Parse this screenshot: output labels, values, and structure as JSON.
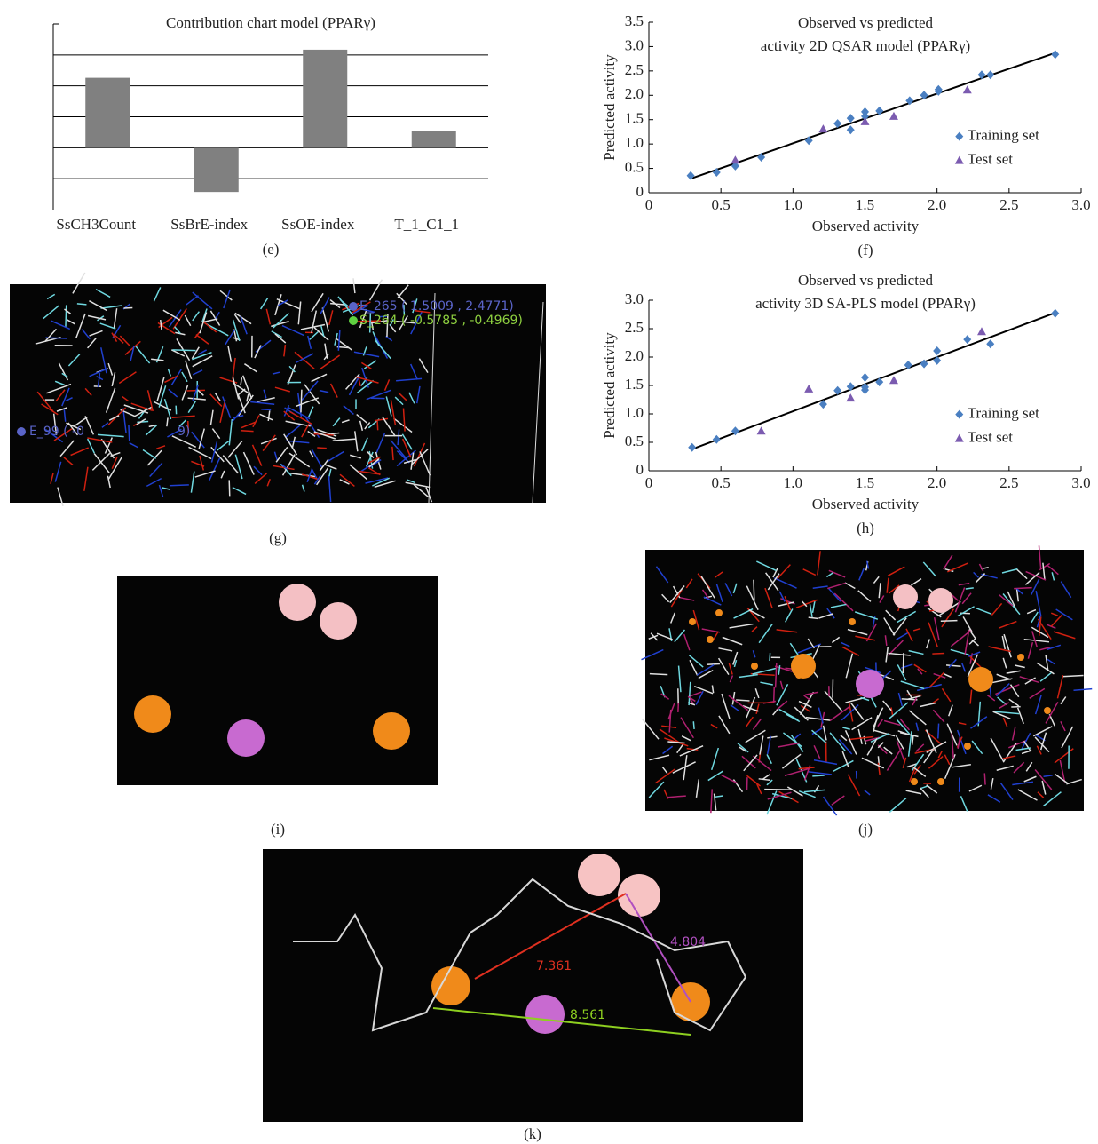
{
  "chart_data": [
    {
      "type": "bar",
      "title": [
        "Contribution chart model (PPARγ)"
      ],
      "categories": [
        "SsCH3Count",
        "SsBrE-index",
        "SsOE-index",
        "T_1_C1_1"
      ],
      "values": [
        2.26,
        -1.43,
        3.17,
        0.54
      ],
      "color": "#808080",
      "ylim": [
        -2,
        4
      ],
      "gridlines": [
        -1,
        0,
        1,
        2,
        3
      ],
      "caption": "(e)"
    },
    {
      "type": "scatter",
      "title": [
        "Observed vs predicted",
        "activity 2D QSAR model (PPARγ)"
      ],
      "x_label": "Observed activity",
      "y_label": "Predicted activity",
      "caption": "(f)",
      "xlim": [
        0,
        3
      ],
      "ylim": [
        0,
        3.5
      ],
      "xticks": [
        0,
        0.5,
        {
          "value": 1,
          "label": "1.0"
        },
        1.5,
        {
          "value": 2,
          "label": "2.0"
        },
        2.5,
        {
          "value": 3,
          "label": "3.0"
        }
      ],
      "yticks": [
        0,
        0.5,
        {
          "value": 1,
          "label": "1.0"
        },
        1.5,
        {
          "value": 2,
          "label": "2.0"
        },
        2.5,
        {
          "value": 3,
          "label": "3.0"
        },
        3.5
      ],
      "legend": "center-right",
      "series": [
        {
          "name": "Training set",
          "color": "#4a7fc1",
          "marker": "diamond",
          "x": [
            0.29,
            0.47,
            0.6,
            0.78,
            1.11,
            1.31,
            1.4,
            1.4,
            1.5,
            1.5,
            1.6,
            1.81,
            1.91,
            2.01,
            2.01,
            2.31,
            2.37,
            2.82
          ],
          "values": [
            0.35,
            0.42,
            0.55,
            0.73,
            1.07,
            1.42,
            1.29,
            1.53,
            1.66,
            1.57,
            1.68,
            1.89,
            2.0,
            2.08,
            2.12,
            2.42,
            2.42,
            2.84
          ]
        },
        {
          "name": "Test set",
          "color": "#7b5bb0",
          "marker": "triangle",
          "x": [
            0.6,
            1.21,
            1.5,
            1.7,
            2.21
          ],
          "values": [
            0.67,
            1.31,
            1.46,
            1.57,
            2.11
          ]
        }
      ],
      "trendline": {
        "x": [
          0.3,
          2.8
        ],
        "y": [
          0.3,
          2.85
        ],
        "color": "#000000"
      }
    },
    {
      "type": "scatter",
      "title": [
        "Observed vs predicted",
        "activity 3D SA-PLS model (PPARγ)"
      ],
      "x_label": "Observed activity",
      "y_label": "Predicted activity",
      "caption": "(h)",
      "xlim": [
        0,
        3
      ],
      "ylim": [
        0,
        3
      ],
      "xticks": [
        0,
        0.5,
        {
          "value": 1,
          "label": "1.0"
        },
        1.5,
        {
          "value": 2,
          "label": "2.0"
        },
        2.5,
        {
          "value": 3,
          "label": "3.0"
        }
      ],
      "yticks": [
        0,
        0.5,
        {
          "value": 1,
          "label": "1.0"
        },
        1.5,
        {
          "value": 2,
          "label": "2.0"
        },
        2.5,
        {
          "value": 3,
          "label": "3.0"
        }
      ],
      "legend": "center-right",
      "series": [
        {
          "name": "Training set",
          "color": "#4a7fc1",
          "marker": "diamond",
          "x": [
            0.3,
            0.47,
            0.6,
            1.21,
            1.31,
            1.4,
            1.5,
            1.5,
            1.5,
            1.6,
            1.8,
            1.91,
            2.0,
            2.0,
            2.21,
            2.37,
            2.82
          ],
          "values": [
            0.41,
            0.55,
            0.7,
            1.17,
            1.41,
            1.48,
            1.47,
            1.64,
            1.42,
            1.56,
            1.86,
            1.88,
            1.94,
            2.11,
            2.31,
            2.23,
            2.77
          ]
        },
        {
          "name": "Test set",
          "color": "#7b5bb0",
          "marker": "triangle",
          "x": [
            0.78,
            1.11,
            1.4,
            1.7,
            2.31
          ],
          "values": [
            0.7,
            1.44,
            1.28,
            1.59,
            2.45
          ]
        }
      ],
      "trendline": {
        "x": [
          0.3,
          2.8
        ],
        "y": [
          0.38,
          2.76
        ],
        "color": "#000000"
      }
    }
  ],
  "panels": [
    {
      "caption": "(g)",
      "labels": [
        "E_265 ( 1.5009 , 2.4771)",
        "S_264 ( -0.5785 , -0.4969)",
        "E_99 ( -0",
        "9)"
      ]
    },
    {
      "caption": "(i)",
      "labels": []
    },
    {
      "caption": "(j)",
      "labels": []
    },
    {
      "caption": "(k)",
      "labels": [
        "7.361",
        "8.561",
        "4.804"
      ]
    }
  ]
}
